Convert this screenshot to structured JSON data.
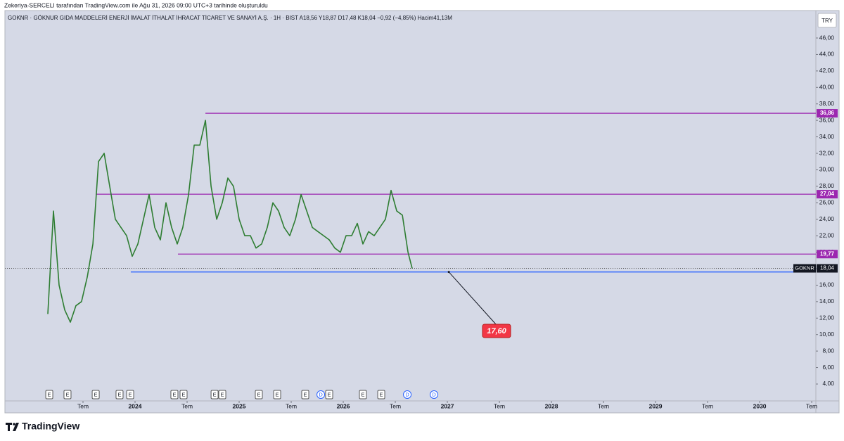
{
  "header": {
    "credit": "Zekeriya-SERCELI tarafından TradingView.com ile Ağu 31, 2026 09:00 UTC+3 tarihinde oluşturuldu"
  },
  "legend": {
    "text": "GOKNR · GÖKNUR GIDA MADDELERİ ENERJİ İMALAT İTHALAT İHRACAT TİCARET VE SANAYİ A.Ş. · 1H · BIST  A18,56  Y18,87  D17,48  K18,04  −0,92 (−4,85%)  Hacim41,13M"
  },
  "currency_button": "TRY",
  "footer": {
    "logo": "TradingView"
  },
  "chart_data": {
    "type": "line",
    "color": "#2e7d32",
    "ylim": [
      1.95,
      49.33
    ],
    "xlim": [
      2022.75,
      2030.54
    ],
    "yticks": [
      {
        "value": 4,
        "label": "4,00"
      },
      {
        "value": 6,
        "label": "6,00"
      },
      {
        "value": 8,
        "label": "8,00"
      },
      {
        "value": 10,
        "label": "10,00"
      },
      {
        "value": 12,
        "label": "12,00"
      },
      {
        "value": 14,
        "label": "14,00"
      },
      {
        "value": 16,
        "label": "16,00"
      },
      {
        "value": 18,
        "label": "18,00"
      },
      {
        "value": 20,
        "label": "20,00"
      },
      {
        "value": 22,
        "label": "22,00"
      },
      {
        "value": 24,
        "label": "24,00"
      },
      {
        "value": 26,
        "label": "26,00"
      },
      {
        "value": 28,
        "label": "28,00"
      },
      {
        "value": 30,
        "label": "30,00"
      },
      {
        "value": 32,
        "label": "32,00"
      },
      {
        "value": 34,
        "label": "34,00"
      },
      {
        "value": 36,
        "label": "36,00"
      },
      {
        "value": 38,
        "label": "38,00"
      },
      {
        "value": 40,
        "label": "40,00"
      },
      {
        "value": 42,
        "label": "42,00"
      },
      {
        "value": 44,
        "label": "44,00"
      },
      {
        "value": 46,
        "label": "46,00"
      }
    ],
    "xticks": [
      {
        "value": 2023.5,
        "label": "Tem"
      },
      {
        "value": 2024,
        "label": "2024"
      },
      {
        "value": 2024.5,
        "label": "Tem"
      },
      {
        "value": 2025,
        "label": "2025"
      },
      {
        "value": 2025.5,
        "label": "Tem"
      },
      {
        "value": 2026,
        "label": "2026"
      },
      {
        "value": 2026.5,
        "label": "Tem"
      },
      {
        "value": 2027,
        "label": "2027"
      },
      {
        "value": 2027.5,
        "label": "Tem"
      },
      {
        "value": 2028,
        "label": "2028"
      },
      {
        "value": 2028.5,
        "label": "Tem"
      },
      {
        "value": 2029,
        "label": "2029"
      },
      {
        "value": 2029.5,
        "label": "Tem"
      },
      {
        "value": 2030,
        "label": "2030"
      },
      {
        "value": 2030.5,
        "label": "Tem"
      }
    ],
    "x": [
      2023.162,
      2023.216,
      2023.27,
      2023.324,
      2023.378,
      2023.432,
      2023.486,
      2023.541,
      2023.595,
      2023.649,
      2023.703,
      2023.757,
      2023.811,
      2023.865,
      2023.919,
      2023.973,
      2024.027,
      2024.081,
      2024.135,
      2024.189,
      2024.243,
      2024.297,
      2024.351,
      2024.405,
      2024.459,
      2024.514,
      2024.568,
      2024.622,
      2024.676,
      2024.73,
      2024.784,
      2024.838,
      2024.892,
      2024.946,
      2025.0,
      2025.054,
      2025.108,
      2025.162,
      2025.216,
      2025.27,
      2025.324,
      2025.378,
      2025.432,
      2025.486,
      2025.541,
      2025.595,
      2025.649,
      2025.703,
      2025.757,
      2025.811,
      2025.865,
      2025.919,
      2025.973,
      2026.027,
      2026.081,
      2026.135,
      2026.189,
      2026.243,
      2026.297,
      2026.351,
      2026.405,
      2026.459,
      2026.514,
      2026.568,
      2026.622,
      2026.662
    ],
    "series": [
      {
        "name": "GOKNR",
        "values": [
          12.5,
          25,
          16,
          13,
          11.5,
          13.5,
          14,
          17,
          21,
          31,
          32,
          28,
          24,
          23,
          22,
          19.5,
          21,
          24,
          27,
          23,
          21.5,
          26,
          23,
          21,
          23,
          27,
          33,
          33,
          36,
          28,
          24,
          26,
          29,
          28,
          24,
          22,
          22,
          20.5,
          21,
          23,
          26,
          25,
          23,
          22,
          24,
          27,
          25,
          23,
          22.5,
          22,
          21.5,
          20.5,
          20,
          22,
          22,
          23.5,
          21,
          22.5,
          22,
          23,
          24,
          27.5,
          25,
          24.5,
          20,
          18.04
        ]
      }
    ],
    "levels": [
      {
        "value": 36.86,
        "label": "36,86",
        "start": 2024.676,
        "color": "#9c27b0"
      },
      {
        "value": 27.04,
        "label": "27,04",
        "start": 2023.622,
        "color": "#9c27b0"
      },
      {
        "value": 19.77,
        "label": "19,77",
        "start": 2024.412,
        "color": "#9c27b0"
      },
      {
        "value": 17.6,
        "label": "17,60",
        "start": 2023.959,
        "color": "#2962ff"
      }
    ],
    "last_price": {
      "symbol": "GOKNR",
      "value": 18.04,
      "label": "18,04"
    },
    "callout": {
      "value": 17.6,
      "label": "17,60",
      "anchor_x": 2027.014
    },
    "events": [
      {
        "label": "E",
        "x": 2023.176
      },
      {
        "label": "E",
        "x": 2023.351
      },
      {
        "label": "E",
        "x": 2023.622
      },
      {
        "label": "E",
        "x": 2023.851
      },
      {
        "label": "E",
        "x": 2023.953
      },
      {
        "label": "E",
        "x": 2024.378
      },
      {
        "label": "E",
        "x": 2024.466
      },
      {
        "label": "E",
        "x": 2024.764
      },
      {
        "label": "E",
        "x": 2024.838
      },
      {
        "label": "E",
        "x": 2025.189
      },
      {
        "label": "E",
        "x": 2025.365
      },
      {
        "label": "E",
        "x": 2025.635
      },
      {
        "label": "D",
        "x": 2025.784
      },
      {
        "label": "E",
        "x": 2025.865
      },
      {
        "label": "E",
        "x": 2026.189
      },
      {
        "label": "E",
        "x": 2026.365
      },
      {
        "label": "D",
        "x": 2026.615
      },
      {
        "label": "D",
        "x": 2026.872
      }
    ]
  }
}
